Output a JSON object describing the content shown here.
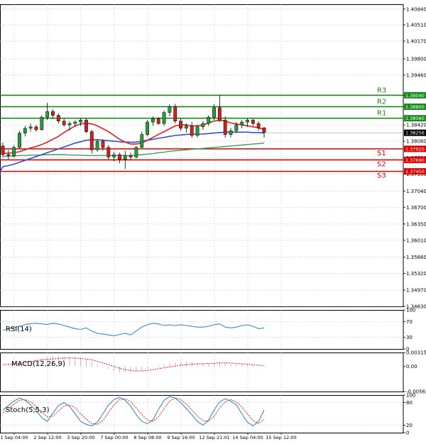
{
  "chart_data": [
    {
      "type": "candlestick",
      "panel": "price",
      "symbol": "GBPUSD",
      "y_ticks": [
        "1.40840",
        "1.40510",
        "1.40170",
        "1.39800",
        "1.39460",
        "1.39040",
        "1.38800",
        "1.38420",
        "1.38080",
        "1.37730",
        "1.37390",
        "1.37040",
        "1.36700",
        "1.36350",
        "1.36010",
        "1.35660",
        "1.35320",
        "1.34970",
        "1.34630"
      ],
      "ylim": [
        1.3463,
        1.4094
      ],
      "levels": [
        {
          "name": "R3",
          "value": "1.39040",
          "color": "#1a8a1a"
        },
        {
          "name": "R2",
          "value": "1.38800",
          "color": "#1a8a1a"
        },
        {
          "name": "R1",
          "value": "1.38560",
          "color": "#1a8a1a"
        },
        {
          "name": "S1",
          "value": "1.37920",
          "color": "#e00000"
        },
        {
          "name": "S2",
          "value": "1.37690",
          "color": "#e00000"
        },
        {
          "name": "S3",
          "value": "1.37450",
          "color": "#e00000"
        }
      ],
      "current_price": "1.38256",
      "candles": [
        [
          1.3798,
          1.3805,
          1.3775,
          1.378
        ],
        [
          1.378,
          1.379,
          1.377,
          1.3778
        ],
        [
          1.3778,
          1.38,
          1.3774,
          1.3795
        ],
        [
          1.3795,
          1.383,
          1.3792,
          1.3825
        ],
        [
          1.3825,
          1.384,
          1.3818,
          1.3835
        ],
        [
          1.3835,
          1.3845,
          1.3828,
          1.3838
        ],
        [
          1.3838,
          1.3842,
          1.3828,
          1.3832
        ],
        [
          1.3832,
          1.3862,
          1.383,
          1.3858
        ],
        [
          1.3858,
          1.3888,
          1.3852,
          1.387
        ],
        [
          1.387,
          1.3875,
          1.3855,
          1.3862
        ],
        [
          1.3862,
          1.3866,
          1.3845,
          1.385
        ],
        [
          1.385,
          1.3856,
          1.3838,
          1.3842
        ],
        [
          1.3842,
          1.385,
          1.383,
          1.3845
        ],
        [
          1.3845,
          1.3852,
          1.3838,
          1.3848
        ],
        [
          1.3848,
          1.3856,
          1.384,
          1.3852
        ],
        [
          1.3852,
          1.3856,
          1.3825,
          1.3828
        ],
        [
          1.3828,
          1.3832,
          1.3782,
          1.379
        ],
        [
          1.379,
          1.3812,
          1.3786,
          1.3808
        ],
        [
          1.3808,
          1.3812,
          1.3788,
          1.3795
        ],
        [
          1.3795,
          1.38,
          1.377,
          1.3775
        ],
        [
          1.3775,
          1.3786,
          1.3766,
          1.378
        ],
        [
          1.378,
          1.3784,
          1.3762,
          1.377
        ],
        [
          1.377,
          1.3788,
          1.375,
          1.3778
        ],
        [
          1.3778,
          1.3784,
          1.3768,
          1.3775
        ],
        [
          1.3775,
          1.3798,
          1.3772,
          1.3795
        ],
        [
          1.3795,
          1.3828,
          1.3793,
          1.3822
        ],
        [
          1.3822,
          1.3852,
          1.3818,
          1.3848
        ],
        [
          1.3848,
          1.386,
          1.384,
          1.3855
        ],
        [
          1.3855,
          1.3858,
          1.3842,
          1.3845
        ],
        [
          1.3845,
          1.3872,
          1.384,
          1.3868
        ],
        [
          1.3868,
          1.3885,
          1.386,
          1.388
        ],
        [
          1.388,
          1.3886,
          1.3845,
          1.385
        ],
        [
          1.385,
          1.3856,
          1.383,
          1.3835
        ],
        [
          1.3835,
          1.3845,
          1.3826,
          1.384
        ],
        [
          1.384,
          1.3848,
          1.3815,
          1.382
        ],
        [
          1.382,
          1.3842,
          1.3816,
          1.3838
        ],
        [
          1.3838,
          1.385,
          1.3832,
          1.3845
        ],
        [
          1.3845,
          1.3862,
          1.384,
          1.3858
        ],
        [
          1.3858,
          1.3885,
          1.3852,
          1.3878
        ],
        [
          1.3878,
          1.3905,
          1.3848,
          1.3852
        ],
        [
          1.3852,
          1.386,
          1.3815,
          1.3822
        ],
        [
          1.3822,
          1.3836,
          1.3816,
          1.383
        ],
        [
          1.383,
          1.3848,
          1.3825,
          1.3842
        ],
        [
          1.3842,
          1.3852,
          1.3835,
          1.3848
        ],
        [
          1.3848,
          1.3856,
          1.3838,
          1.3852
        ],
        [
          1.3852,
          1.3855,
          1.384,
          1.3845
        ],
        [
          1.3845,
          1.385,
          1.383,
          1.3836
        ],
        [
          1.3836,
          1.3838,
          1.3815,
          1.3826
        ]
      ],
      "ma_red": [
        1.3783,
        1.3783,
        1.3784,
        1.3786,
        1.379,
        1.3794,
        1.3797,
        1.3801,
        1.3806,
        1.3812,
        1.3818,
        1.3826,
        1.3833,
        1.384,
        1.3844,
        1.3846,
        1.3844,
        1.384,
        1.3834,
        1.3828,
        1.382,
        1.3812,
        1.3806,
        1.3802,
        1.3802,
        1.3804,
        1.381,
        1.3816,
        1.3822,
        1.3828,
        1.3834,
        1.384,
        1.3842,
        1.3842,
        1.384,
        1.384,
        1.3842,
        1.3846,
        1.385,
        1.3852,
        1.385,
        1.3846,
        1.3844,
        1.3842,
        1.384,
        1.3838,
        1.3836,
        1.3832
      ],
      "ma_blue": [
        1.3755,
        1.3757,
        1.376,
        1.3764,
        1.3768,
        1.3772,
        1.3776,
        1.378,
        1.3784,
        1.3788,
        1.3792,
        1.3796,
        1.38,
        1.3804,
        1.3807,
        1.381,
        1.3811,
        1.3811,
        1.381,
        1.3809,
        1.3808,
        1.3807,
        1.3806,
        1.3806,
        1.3806,
        1.3808,
        1.381,
        1.3812,
        1.3814,
        1.3816,
        1.3818,
        1.382,
        1.3821,
        1.3822,
        1.3823,
        1.3823,
        1.3823,
        1.3824,
        1.3825,
        1.3826,
        1.3827,
        1.3827,
        1.3827,
        1.3827,
        1.3827,
        1.3826,
        1.3826,
        1.3825
      ],
      "ma_green": [
        1.3776,
        1.3777,
        1.3777,
        1.3778,
        1.3778,
        1.3779,
        1.3779,
        1.3779,
        1.378,
        1.378,
        1.378,
        1.378,
        1.3779,
        1.3779,
        1.3779,
        1.3778,
        1.3778,
        1.3778,
        1.3778,
        1.3778,
        1.3778,
        1.3778,
        1.3778,
        1.3778,
        1.3779,
        1.378,
        1.3781,
        1.3782,
        1.3784,
        1.3785,
        1.3787,
        1.3788,
        1.3789,
        1.379,
        1.3791,
        1.3792,
        1.3793,
        1.3794,
        1.3795,
        1.3796,
        1.3797,
        1.3798,
        1.3799,
        1.38,
        1.3801,
        1.3802,
        1.3803,
        1.3804
      ]
    },
    {
      "type": "line",
      "panel": "rsi",
      "label": "RSI(14)",
      "y_ticks": [
        "100",
        "70",
        "30",
        "0"
      ],
      "ylim": [
        0,
        100
      ],
      "values": [
        48,
        52,
        55,
        58,
        62,
        65,
        66,
        64,
        63,
        66,
        64,
        60,
        56,
        52,
        50,
        54,
        46,
        40,
        38,
        36,
        34,
        37,
        40,
        36,
        46,
        56,
        62,
        66,
        64,
        60,
        62,
        60,
        62,
        60,
        58,
        56,
        56,
        58,
        62,
        64,
        56,
        54,
        56,
        60,
        62,
        58,
        52,
        54
      ]
    },
    {
      "type": "histogram+line",
      "panel": "macd",
      "label": "MACD(12,26,9)",
      "y_ticks": [
        "0.003153",
        "0.00",
        "-0.005628"
      ],
      "ylim": [
        -0.005628,
        0.003153
      ],
      "histogram": [
        0.0001,
        0.0003,
        0.0006,
        0.0009,
        0.0012,
        0.0015,
        0.0017,
        0.0019,
        0.0021,
        0.0022,
        0.0023,
        0.0023,
        0.0022,
        0.0021,
        0.0019,
        0.0016,
        0.0011,
        0.0005,
        -0.0001,
        -0.0006,
        -0.001,
        -0.0013,
        -0.0014,
        -0.0014,
        -0.0012,
        -0.0009,
        -0.0005,
        -0.0001,
        0.0002,
        0.0005,
        0.0007,
        0.0009,
        0.001,
        0.001,
        0.0009,
        0.0008,
        0.0008,
        0.0008,
        0.0009,
        0.001,
        0.0008,
        0.0006,
        0.0005,
        0.0004,
        0.0003,
        0.0002,
        0.0001,
        0.0
      ],
      "signal": [
        0.0004,
        0.0005,
        0.0006,
        0.0007,
        0.0009,
        0.0011,
        0.0013,
        0.0015,
        0.0016,
        0.0017,
        0.0018,
        0.0019,
        0.0019,
        0.0019,
        0.0018,
        0.0017,
        0.0015,
        0.0012,
        0.0008,
        0.0004,
        0.0,
        -0.0004,
        -0.0007,
        -0.0009,
        -0.001,
        -0.001,
        -0.0009,
        -0.0007,
        -0.0005,
        -0.0003,
        -0.0001,
        0.0001,
        0.0003,
        0.0004,
        0.0005,
        0.0006,
        0.0006,
        0.0007,
        0.0007,
        0.0008,
        0.0008,
        0.0008,
        0.0007,
        0.0006,
        0.0005,
        0.0004,
        0.0003,
        0.0002
      ]
    },
    {
      "type": "line",
      "panel": "stoch",
      "label": "Stoch(5,5,3)",
      "y_ticks": [
        "100",
        "80",
        "20",
        "0"
      ],
      "ylim": [
        0,
        100
      ],
      "main": [
        60,
        72,
        84,
        92,
        86,
        74,
        58,
        40,
        30,
        52,
        72,
        80,
        70,
        50,
        30,
        22,
        18,
        28,
        50,
        74,
        88,
        94,
        86,
        70,
        48,
        30,
        24,
        34,
        62,
        86,
        96,
        92,
        80,
        64,
        48,
        30,
        20,
        34,
        60,
        82,
        90,
        84,
        74,
        50,
        28,
        18,
        30,
        60
      ],
      "signal": [
        52,
        64,
        76,
        86,
        88,
        82,
        70,
        54,
        42,
        44,
        58,
        70,
        74,
        66,
        50,
        36,
        24,
        22,
        32,
        54,
        74,
        88,
        90,
        82,
        66,
        48,
        34,
        30,
        42,
        64,
        84,
        92,
        88,
        76,
        60,
        44,
        32,
        30,
        44,
        66,
        82,
        88,
        82,
        68,
        50,
        32,
        24,
        36
      ]
    },
    {
      "type": "axis",
      "panel": "time",
      "x_labels": [
        "1 Sep 04:00",
        "2 Sep 12:00",
        "3 Sep 20:00",
        "7 Sep 00:00",
        "8 Sep 08:00",
        "9 Sep 16:00",
        "12 Sep 21:01",
        "14 Sep 04:00",
        "15 Sep 12:00"
      ]
    }
  ]
}
